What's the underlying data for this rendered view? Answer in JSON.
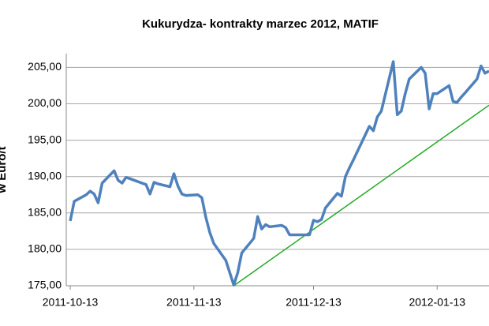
{
  "chart_data": {
    "type": "line",
    "title": "Kukurydza- kontrakty marzec 2012, MATIF",
    "y_label": "w Euro/t",
    "xlim": [
      "2011-10-12",
      "2012-01-26"
    ],
    "xticks": [
      "2011-10-13",
      "2011-11-13",
      "2011-12-13",
      "2012-01-13"
    ],
    "ylim": [
      175,
      205.8
    ],
    "yticks": [
      {
        "value": 175,
        "label": "175,00"
      },
      {
        "value": 180,
        "label": "180,00"
      },
      {
        "value": 185,
        "label": "185,00"
      },
      {
        "value": 190,
        "label": "190,00"
      },
      {
        "value": 195,
        "label": "195,00"
      },
      {
        "value": 200,
        "label": "200,00"
      },
      {
        "value": 205,
        "label": "205,00"
      }
    ],
    "grid": true,
    "series": [
      {
        "color": "#4f81bd",
        "x": [
          "2011-10-13",
          "2011-10-14",
          "2011-10-17",
          "2011-10-18",
          "2011-10-19",
          "2011-10-20",
          "2011-10-21",
          "2011-10-24",
          "2011-10-25",
          "2011-10-26",
          "2011-10-27",
          "2011-10-28",
          "2011-10-31",
          "2011-11-01",
          "2011-11-02",
          "2011-11-03",
          "2011-11-04",
          "2011-11-07",
          "2011-11-08",
          "2011-11-09",
          "2011-11-10",
          "2011-11-11",
          "2011-11-14",
          "2011-11-15",
          "2011-11-16",
          "2011-11-17",
          "2011-11-18",
          "2011-11-21",
          "2011-11-22",
          "2011-11-23",
          "2011-11-24",
          "2011-11-25",
          "2011-11-28",
          "2011-11-29",
          "2011-11-30",
          "2011-12-01",
          "2011-12-02",
          "2011-12-05",
          "2011-12-06",
          "2011-12-07",
          "2011-12-08",
          "2011-12-09",
          "2011-12-12",
          "2011-12-13",
          "2011-12-14",
          "2011-12-15",
          "2011-12-16",
          "2011-12-19",
          "2011-12-20",
          "2011-12-21",
          "2011-12-22",
          "2011-12-23",
          "2011-12-27",
          "2011-12-28",
          "2011-12-29",
          "2011-12-30",
          "2012-01-02",
          "2012-01-03",
          "2012-01-04",
          "2012-01-05",
          "2012-01-06",
          "2012-01-09",
          "2012-01-10",
          "2012-01-11",
          "2012-01-12",
          "2012-01-13",
          "2012-01-16",
          "2012-01-17",
          "2012-01-18",
          "2012-01-19",
          "2012-01-20",
          "2012-01-23",
          "2012-01-24",
          "2012-01-25",
          "2012-01-26"
        ],
        "values": [
          183.9,
          186.6,
          187.5,
          188.0,
          187.6,
          186.4,
          189.1,
          190.8,
          189.5,
          189.1,
          189.9,
          189.7,
          189.1,
          188.9,
          187.6,
          189.2,
          189.0,
          188.6,
          190.4,
          188.7,
          187.6,
          187.4,
          187.5,
          187.1,
          184.4,
          182.3,
          180.8,
          178.5,
          176.8,
          175.1,
          176.8,
          179.5,
          181.5,
          184.5,
          182.8,
          183.4,
          183.1,
          183.3,
          183.0,
          182.0,
          182.0,
          182.0,
          182.0,
          184.0,
          183.8,
          184.1,
          185.7,
          187.7,
          187.3,
          190.0,
          191.2,
          192.3,
          196.9,
          196.3,
          198.2,
          199.0,
          205.8,
          198.5,
          199.0,
          201.4,
          203.4,
          205.0,
          204.2,
          199.3,
          201.4,
          201.4,
          202.5,
          200.3,
          200.2,
          200.9,
          201.5,
          203.4,
          205.2,
          204.2,
          204.5
        ]
      },
      {
        "color": "#22aa22",
        "x": [
          "2011-11-23",
          "2012-01-26"
        ],
        "values": [
          175,
          199.8
        ]
      }
    ]
  }
}
